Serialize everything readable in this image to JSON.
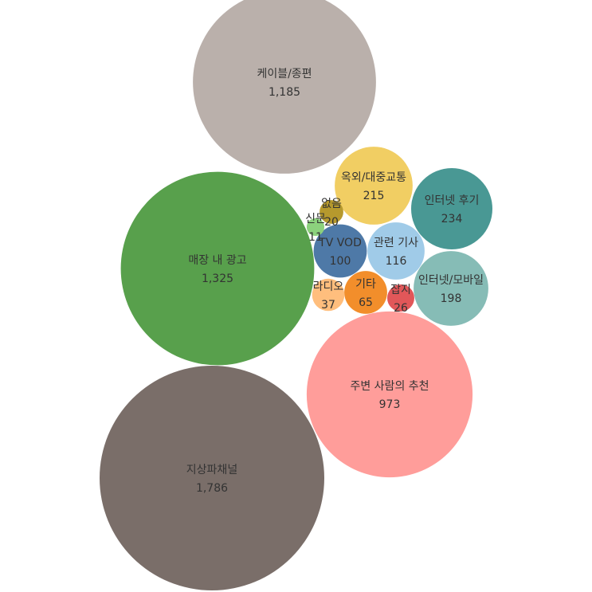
{
  "chart_data": {
    "type": "bubble",
    "title": "",
    "bubbles": [
      {
        "label": "지상파채널",
        "value": 1786,
        "display": "1,786",
        "color": "#7a6e69"
      },
      {
        "label": "매장 내 광고",
        "value": 1325,
        "display": "1,325",
        "color": "#58a04c"
      },
      {
        "label": "케이블/종편",
        "value": 1185,
        "display": "1,185",
        "color": "#bab0ab"
      },
      {
        "label": "주변 사람의 추천",
        "value": 973,
        "display": "973",
        "color": "#ff9d9a"
      },
      {
        "label": "인터넷 후기",
        "value": 234,
        "display": "234",
        "color": "#499894"
      },
      {
        "label": "옥외/대중교통",
        "value": 215,
        "display": "215",
        "color": "#f1ce63"
      },
      {
        "label": "인터넷/모바일",
        "value": 198,
        "display": "198",
        "color": "#86bcb6"
      },
      {
        "label": "관련 기사",
        "value": 116,
        "display": "116",
        "color": "#a0cbe8"
      },
      {
        "label": "TV VOD",
        "value": 100,
        "display": "100",
        "color": "#4e79a7"
      },
      {
        "label": "기타",
        "value": 65,
        "display": "65",
        "color": "#f28e2b"
      },
      {
        "label": "라디오",
        "value": 37,
        "display": "37",
        "color": "#ffbe7d"
      },
      {
        "label": "잡지",
        "value": 26,
        "display": "26",
        "color": "#e15759"
      },
      {
        "label": "없음",
        "value": 20,
        "display": "20",
        "color": "#b6992d"
      },
      {
        "label": "신문",
        "value": 11,
        "display": "11",
        "color": "#8cd17d"
      }
    ]
  }
}
